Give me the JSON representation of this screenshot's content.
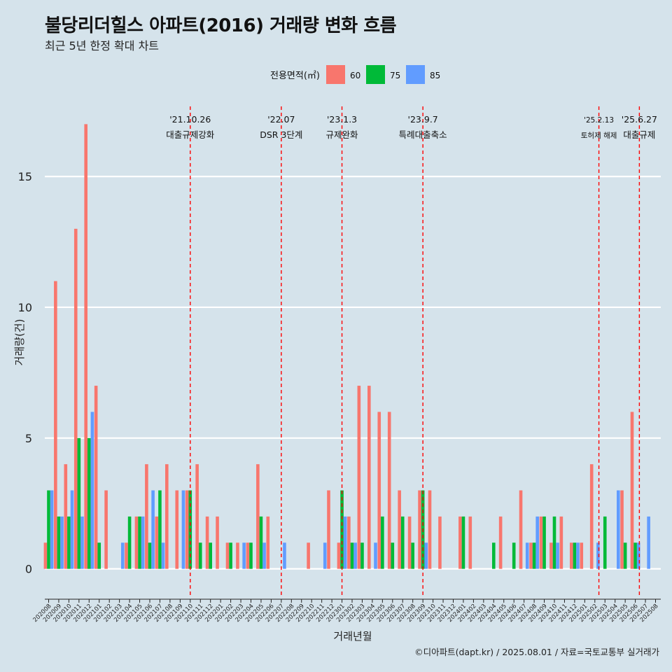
{
  "chart_data": {
    "type": "bar",
    "title": "불당리더힐스 아파트(2016) 거래량 변화 흐름",
    "subtitle": "최근 5년 한정 확대 차트",
    "xlabel": "거래년월",
    "ylabel": "거래량(건)",
    "ylim": [
      -1,
      18
    ],
    "yticks": [
      0,
      5,
      10,
      15
    ],
    "legend_title": "전용면적(㎡)",
    "legend_position": "top",
    "grid": "horizontal",
    "caption": "©디아파트(dapt.kr) / 2025.08.01 / 자료=국토교통부 실거래가",
    "colors": {
      "60": "#F8766D",
      "75": "#00BA38",
      "85": "#619CFF",
      "background": "#d5e3eb",
      "gridline": "#ffffff",
      "event_line": "#ff0000"
    },
    "categories": [
      "202008",
      "202009",
      "202010",
      "202011",
      "202012",
      "202101",
      "202102",
      "202103",
      "202104",
      "202105",
      "202106",
      "202107",
      "202108",
      "202109",
      "202110",
      "202111",
      "202112",
      "202201",
      "202202",
      "202203",
      "202204",
      "202205",
      "202206",
      "202207",
      "202208",
      "202209",
      "202210",
      "202211",
      "202212",
      "202301",
      "202302",
      "202303",
      "202304",
      "202305",
      "202306",
      "202307",
      "202308",
      "202309",
      "202310",
      "202311",
      "202312",
      "202401",
      "202402",
      "202403",
      "202404",
      "202405",
      "202406",
      "202407",
      "202408",
      "202409",
      "202410",
      "202411",
      "202412",
      "202501",
      "202502",
      "202503",
      "202504",
      "202505",
      "202506",
      "202507",
      "202508"
    ],
    "series": [
      {
        "name": "60",
        "values": [
          1,
          11,
          4,
          13,
          17,
          7,
          3,
          0,
          1,
          2,
          4,
          2,
          4,
          3,
          3,
          4,
          2,
          2,
          1,
          1,
          1,
          4,
          2,
          0,
          0,
          0,
          1,
          0,
          3,
          1,
          2,
          7,
          7,
          6,
          6,
          3,
          2,
          3,
          3,
          2,
          0,
          2,
          2,
          0,
          0,
          2,
          0,
          3,
          1,
          2,
          1,
          2,
          1,
          1,
          4,
          0,
          0,
          3,
          6,
          0,
          0
        ]
      },
      {
        "name": "75",
        "values": [
          3,
          2,
          2,
          5,
          5,
          1,
          0,
          0,
          2,
          2,
          1,
          3,
          0,
          0,
          3,
          1,
          1,
          0,
          1,
          0,
          1,
          2,
          0,
          0,
          0,
          0,
          0,
          0,
          0,
          3,
          1,
          1,
          0,
          2,
          1,
          2,
          1,
          3,
          0,
          0,
          0,
          2,
          0,
          0,
          1,
          0,
          1,
          0,
          1,
          2,
          2,
          0,
          1,
          0,
          0,
          2,
          0,
          1,
          1,
          0,
          0
        ]
      },
      {
        "name": "85",
        "values": [
          3,
          2,
          3,
          2,
          6,
          0,
          0,
          1,
          0,
          2,
          3,
          1,
          0,
          3,
          0,
          0,
          0,
          0,
          0,
          1,
          0,
          1,
          0,
          1,
          0,
          0,
          0,
          1,
          0,
          2,
          1,
          0,
          1,
          0,
          0,
          0,
          0,
          1,
          0,
          0,
          0,
          0,
          0,
          0,
          0,
          0,
          0,
          1,
          2,
          0,
          1,
          0,
          1,
          0,
          1,
          0,
          3,
          0,
          1,
          2,
          0
        ]
      }
    ],
    "events": [
      {
        "date": "'21.10.26",
        "label": "대출규제강화",
        "at": 14.0,
        "small": false
      },
      {
        "date": "'22.07",
        "label": "DSR 3단계",
        "at": 23.0,
        "small": false
      },
      {
        "date": "'23.1.3",
        "label": "규제완화",
        "at": 29.0,
        "small": false
      },
      {
        "date": "'23.9.7",
        "label": "특례대출축소",
        "at": 37.0,
        "small": false
      },
      {
        "date": "'25.2.13",
        "label": "토허제 해제",
        "at": 54.4,
        "small": true
      },
      {
        "date": "'25.6.27",
        "label": "대출규제",
        "at": 58.4,
        "small": false
      }
    ]
  }
}
